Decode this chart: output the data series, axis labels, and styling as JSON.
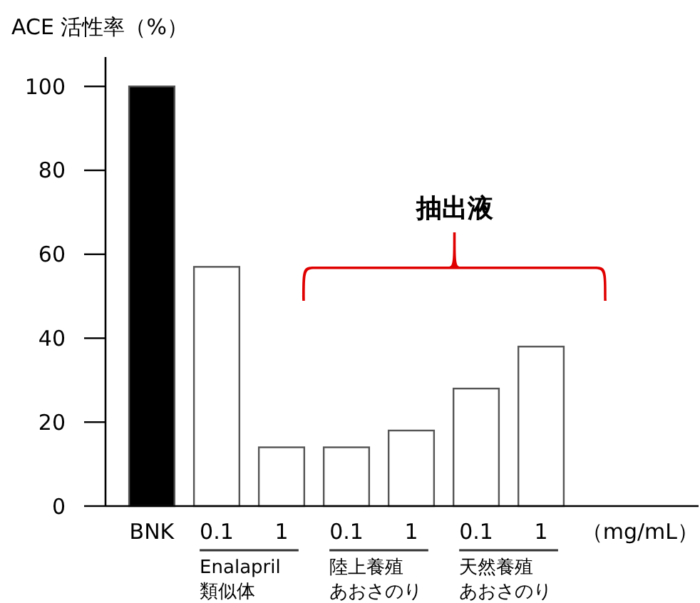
{
  "chart_data": {
    "type": "bar",
    "ylabel": "ACE 活性率（%）",
    "xlabel": "（mg/mL）",
    "categories": [
      "BNK",
      "0.1",
      "1",
      "0.1",
      "1",
      "0.1",
      "1"
    ],
    "values": [
      100,
      57,
      14,
      14,
      18,
      28,
      38
    ],
    "colors": [
      "#000000",
      "#ffffff",
      "#ffffff",
      "#ffffff",
      "#ffffff",
      "#ffffff",
      "#ffffff"
    ],
    "ylim": [
      0,
      107
    ],
    "yticks": [
      0,
      20,
      40,
      60,
      80,
      100
    ],
    "grid": false,
    "annotations": [
      "抽出液",
      "Enalapril\n類似体",
      "陸上養殖あおさのり",
      "天然養殖あおさのり"
    ]
  }
}
